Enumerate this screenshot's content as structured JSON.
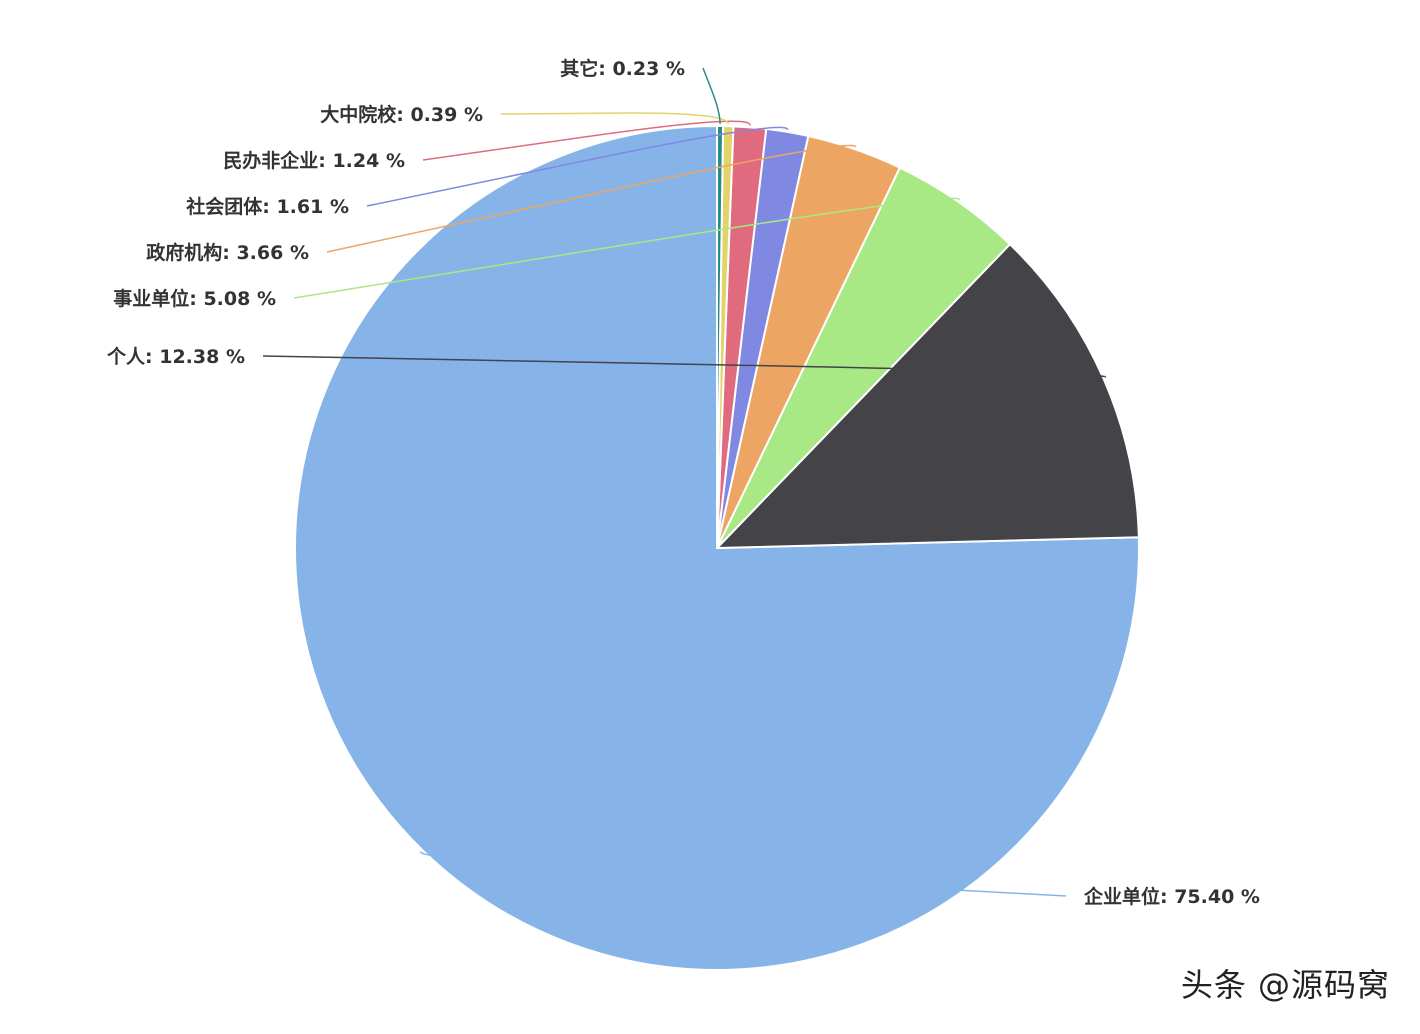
{
  "chart_data": {
    "type": "pie",
    "unit": "%",
    "start_angle_deg": 90,
    "direction": "counterclockwise",
    "label_format": "{name}: {value} %",
    "slices": [
      {
        "name": "企业单位",
        "value": 75.4,
        "color": "#87b4e8"
      },
      {
        "name": "个人",
        "value": 12.38,
        "color": "#434348"
      },
      {
        "name": "事业单位",
        "value": 5.08,
        "color": "#a8e986"
      },
      {
        "name": "政府机构",
        "value": 3.66,
        "color": "#eda563"
      },
      {
        "name": "社会团体",
        "value": 1.61,
        "color": "#8089e2"
      },
      {
        "name": "民办非企业",
        "value": 1.24,
        "color": "#e06b7f"
      },
      {
        "name": "大中院校",
        "value": 0.39,
        "color": "#e3d36b"
      },
      {
        "name": "其它",
        "value": 0.23,
        "color": "#2d8a8a"
      }
    ]
  },
  "watermark": "头条 @源码窝"
}
